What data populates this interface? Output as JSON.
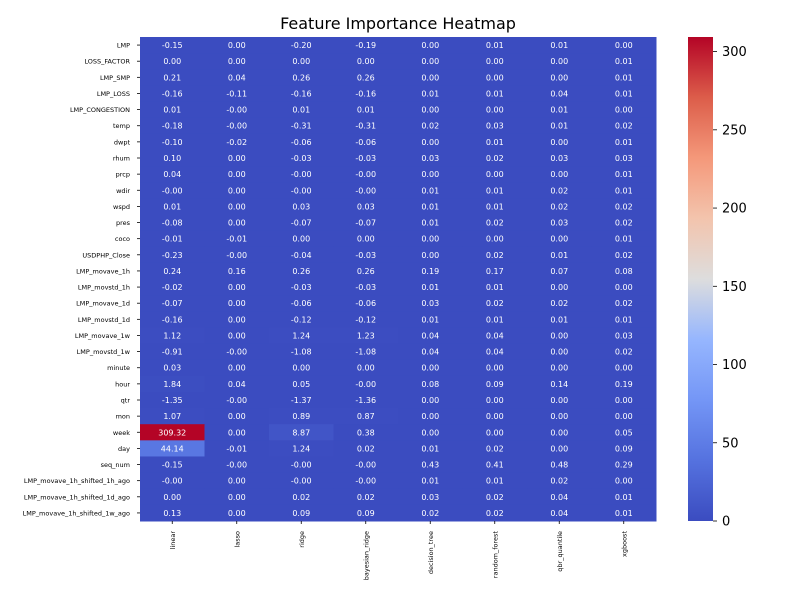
{
  "chart_data": {
    "type": "heatmap",
    "title": "Feature Importance Heatmap",
    "colormap": "coolwarm",
    "colorbar": {
      "min": 0,
      "max": 309.32,
      "ticks": [
        0,
        50,
        100,
        150,
        200,
        250,
        300
      ]
    },
    "columns": [
      "linear",
      "lasso",
      "ridge",
      "bayesian_ridge",
      "decision_tree",
      "random_forest",
      "qbr_quantile",
      "xgboost"
    ],
    "rows": [
      "LMP",
      "LOSS_FACTOR",
      "LMP_SMP",
      "LMP_LOSS",
      "LMP_CONGESTION",
      "temp",
      "dwpt",
      "rhum",
      "prcp",
      "wdir",
      "wspd",
      "pres",
      "coco",
      "USDPHP_Close",
      "LMP_movave_1h",
      "LMP_movstd_1h",
      "LMP_movave_1d",
      "LMP_movstd_1d",
      "LMP_movave_1w",
      "LMP_movstd_1w",
      "minute",
      "hour",
      "qtr",
      "mon",
      "week",
      "day",
      "seq_num",
      "LMP_movave_1h_shifted_1h_ago",
      "LMP_movave_1h_shifted_1d_ago",
      "LMP_movave_1h_shifted_1w_ago"
    ],
    "values": [
      [
        -0.15,
        0.0,
        -0.2,
        -0.19,
        0.0,
        0.01,
        0.01,
        0.0
      ],
      [
        0.0,
        0.0,
        0.0,
        0.0,
        0.0,
        0.0,
        0.0,
        0.01
      ],
      [
        0.21,
        0.04,
        0.26,
        0.26,
        0.0,
        0.0,
        0.0,
        0.01
      ],
      [
        -0.16,
        -0.11,
        -0.16,
        -0.16,
        0.01,
        0.01,
        0.04,
        0.01
      ],
      [
        0.01,
        -0.0,
        0.01,
        0.01,
        0.0,
        0.0,
        0.01,
        0.0
      ],
      [
        -0.18,
        -0.0,
        -0.31,
        -0.31,
        0.02,
        0.03,
        0.01,
        0.02
      ],
      [
        -0.1,
        -0.02,
        -0.06,
        -0.06,
        0.0,
        0.01,
        0.0,
        0.01
      ],
      [
        0.1,
        0.0,
        -0.03,
        -0.03,
        0.03,
        0.02,
        0.03,
        0.03
      ],
      [
        0.04,
        0.0,
        -0.0,
        -0.0,
        0.0,
        0.0,
        0.0,
        0.01
      ],
      [
        -0.0,
        0.0,
        -0.0,
        -0.0,
        0.01,
        0.01,
        0.02,
        0.01
      ],
      [
        0.01,
        0.0,
        0.03,
        0.03,
        0.01,
        0.01,
        0.02,
        0.02
      ],
      [
        -0.08,
        0.0,
        -0.07,
        -0.07,
        0.01,
        0.02,
        0.03,
        0.02
      ],
      [
        -0.01,
        -0.01,
        0.0,
        0.0,
        0.0,
        0.0,
        0.0,
        0.01
      ],
      [
        -0.23,
        -0.0,
        -0.04,
        -0.03,
        0.0,
        0.02,
        0.01,
        0.02
      ],
      [
        0.24,
        0.16,
        0.26,
        0.26,
        0.19,
        0.17,
        0.07,
        0.08
      ],
      [
        -0.02,
        0.0,
        -0.03,
        -0.03,
        0.01,
        0.01,
        0.0,
        0.0
      ],
      [
        -0.07,
        0.0,
        -0.06,
        -0.06,
        0.03,
        0.02,
        0.02,
        0.02
      ],
      [
        -0.16,
        0.0,
        -0.12,
        -0.12,
        0.01,
        0.01,
        0.01,
        0.01
      ],
      [
        1.12,
        0.0,
        1.24,
        1.23,
        0.04,
        0.04,
        0.0,
        0.03
      ],
      [
        -0.91,
        -0.0,
        -1.08,
        -1.08,
        0.04,
        0.04,
        0.0,
        0.02
      ],
      [
        0.03,
        0.0,
        0.0,
        0.0,
        0.0,
        0.0,
        0.0,
        0.0
      ],
      [
        1.84,
        0.04,
        0.05,
        -0.0,
        0.08,
        0.09,
        0.14,
        0.19
      ],
      [
        -1.35,
        -0.0,
        -1.37,
        -1.36,
        0.0,
        0.0,
        0.0,
        0.0
      ],
      [
        1.07,
        0.0,
        0.89,
        0.87,
        0.0,
        0.0,
        0.0,
        0.0
      ],
      [
        309.32,
        0.0,
        8.87,
        0.38,
        0.0,
        0.0,
        0.0,
        0.05
      ],
      [
        44.14,
        -0.01,
        1.24,
        0.02,
        0.01,
        0.02,
        0.0,
        0.09
      ],
      [
        -0.15,
        -0.0,
        -0.0,
        -0.0,
        0.43,
        0.41,
        0.48,
        0.29
      ],
      [
        -0.0,
        0.0,
        -0.0,
        -0.0,
        0.01,
        0.01,
        0.02,
        0.0
      ],
      [
        0.0,
        0.0,
        0.02,
        0.02,
        0.03,
        0.02,
        0.04,
        0.01
      ],
      [
        0.13,
        0.0,
        0.09,
        0.09,
        0.02,
        0.02,
        0.04,
        0.01
      ]
    ]
  }
}
